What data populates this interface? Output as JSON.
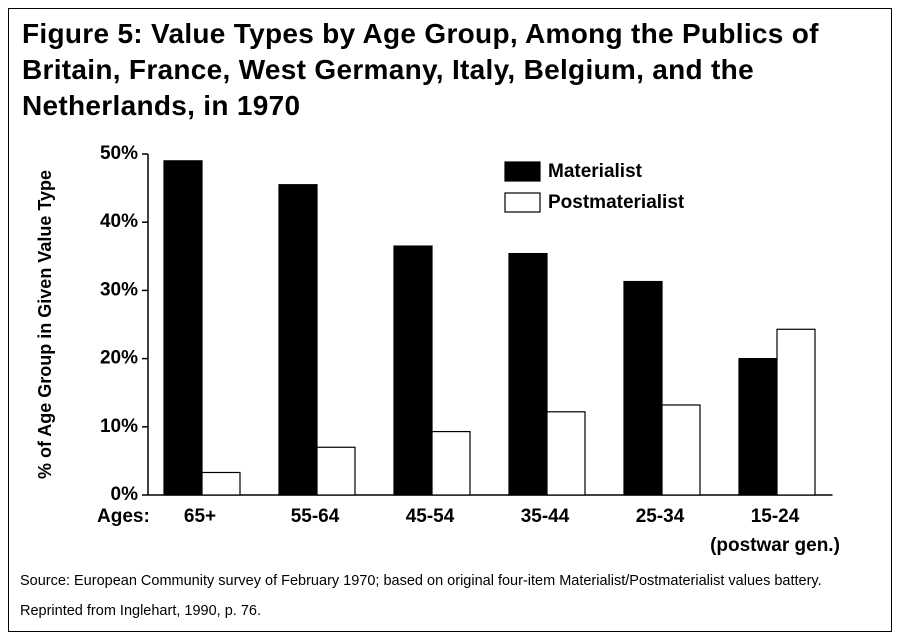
{
  "chart_data": {
    "type": "bar",
    "title": "Figure 5: Value Types by Age Group, Among the Publics of Britain, France, West Germany, Italy, Belgium, and the Netherlands, in 1970",
    "x_label": "Ages:",
    "y_label": "% of Age Group in Given Value Type",
    "categories": [
      "65+",
      "55-64",
      "45-54",
      "35-44",
      "25-34",
      "15-24"
    ],
    "annotation": "(postwar gen.)",
    "series": [
      {
        "name": "Materialist",
        "color": "#000000",
        "values": [
          49,
          45.5,
          36.5,
          35.4,
          31.3,
          20
        ]
      },
      {
        "name": "Postmaterialist",
        "color": "#ffffff",
        "values": [
          3.3,
          7,
          9.3,
          12.2,
          13.2,
          24.3
        ]
      }
    ],
    "ylim": [
      0,
      50
    ],
    "yticks": [
      {
        "value": 0,
        "label": "0%"
      },
      {
        "value": 10,
        "label": "10%"
      },
      {
        "value": 20,
        "label": "20%"
      },
      {
        "value": 30,
        "label": "30%"
      },
      {
        "value": 40,
        "label": "40%"
      },
      {
        "value": 50,
        "label": "50%"
      }
    ],
    "grid": false,
    "legend": "top-right",
    "source": "Source: European Community survey of February 1970; based on original four-item Materialist/Postmaterialist values battery. Reprinted from Inglehart, 1990, p. 76."
  }
}
